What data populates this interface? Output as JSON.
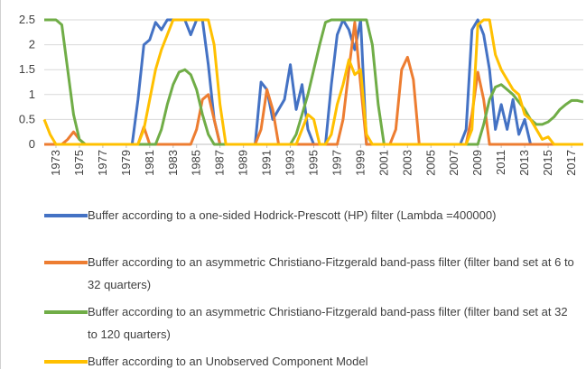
{
  "chart_data": {
    "type": "line",
    "x": [
      1972,
      1972.5,
      1973,
      1973.5,
      1974,
      1974.5,
      1975,
      1975.5,
      1976,
      1976.5,
      1977,
      1977.5,
      1978,
      1978.5,
      1979,
      1979.5,
      1980,
      1980.5,
      1981,
      1981.5,
      1982,
      1982.5,
      1983,
      1983.5,
      1984,
      1984.5,
      1985,
      1985.5,
      1986,
      1986.5,
      1987,
      1987.5,
      1988,
      1988.5,
      1989,
      1989.5,
      1990,
      1990.5,
      1991,
      1991.5,
      1992,
      1992.5,
      1993,
      1993.5,
      1994,
      1994.5,
      1995,
      1995.5,
      1996,
      1996.5,
      1997,
      1997.5,
      1998,
      1998.5,
      1999,
      1999.5,
      2000,
      2000.5,
      2001,
      2001.5,
      2002,
      2002.5,
      2003,
      2003.5,
      2004,
      2004.5,
      2005,
      2005.5,
      2006,
      2006.5,
      2007,
      2007.5,
      2008,
      2008.5,
      2009,
      2009.5,
      2010,
      2010.5,
      2011,
      2011.5,
      2012,
      2012.5,
      2013,
      2013.5,
      2014,
      2014.5,
      2015,
      2015.5,
      2016,
      2016.5,
      2017,
      2017.5,
      2018
    ],
    "xlim": [
      1972,
      2018
    ],
    "xticks": [
      1973,
      1975,
      1977,
      1979,
      1981,
      1983,
      1985,
      1987,
      1989,
      1991,
      1993,
      1995,
      1997,
      1999,
      2001,
      2003,
      2005,
      2007,
      2009,
      2011,
      2013,
      2015,
      2017
    ],
    "ylim": [
      0,
      2.5
    ],
    "yticks": [
      0,
      0.5,
      1,
      1.5,
      2,
      2.5
    ],
    "grid": true,
    "legend": "bottom",
    "series": [
      {
        "name": "Buffer according to a one-sided Hodrick-Prescott (HP) filter (Lambda =400000)",
        "color": "#4472c4",
        "values": [
          0,
          0,
          0,
          0,
          0,
          0,
          0,
          0,
          0,
          0,
          0,
          0,
          0,
          0,
          0,
          0,
          0.9,
          2.0,
          2.1,
          2.45,
          2.3,
          2.5,
          2.5,
          2.5,
          2.5,
          2.2,
          2.5,
          2.5,
          1.6,
          0.5,
          0,
          0,
          0,
          0,
          0,
          0,
          0,
          1.25,
          1.1,
          0.5,
          0.7,
          0.9,
          1.6,
          0.7,
          1.2,
          0.3,
          0,
          0,
          0,
          1.2,
          2.2,
          2.5,
          2.3,
          1.9,
          2.5,
          0,
          0,
          0,
          0,
          0,
          0,
          0,
          0,
          0,
          0,
          0,
          0,
          0,
          0,
          0,
          0,
          0,
          0.3,
          2.3,
          2.5,
          2.2,
          1.5,
          0.3,
          0.8,
          0.3,
          0.9,
          0.2,
          0.5,
          0,
          0,
          0,
          0,
          0,
          0,
          0,
          0,
          0,
          0
        ]
      },
      {
        "name": "Buffer according to an asymmetric Christiano-Fitzgerald band-pass filter (filter band set at 6 to 32 quarters)",
        "color": "#ed7d31",
        "values": [
          0,
          0,
          0,
          0,
          0.1,
          0.25,
          0.1,
          0,
          0,
          0,
          0,
          0,
          0,
          0,
          0,
          0,
          0,
          0.35,
          0,
          0,
          0,
          0,
          0,
          0,
          0,
          0,
          0.3,
          0.9,
          1.0,
          0.5,
          0,
          0,
          0,
          0,
          0,
          0,
          0,
          0.3,
          1.1,
          0.7,
          0,
          0,
          0,
          0,
          0,
          0,
          0,
          0,
          0,
          0,
          0,
          0.5,
          1.5,
          2.45,
          1.2,
          0,
          0,
          0,
          0,
          0,
          0.3,
          1.5,
          1.75,
          1.3,
          0,
          0,
          0,
          0,
          0,
          0,
          0,
          0,
          0,
          0.6,
          1.45,
          0.9,
          0,
          0,
          0,
          0,
          0,
          0,
          0,
          0,
          0,
          0,
          0,
          0,
          0,
          0,
          0,
          0,
          0
        ]
      },
      {
        "name": "Buffer according to an asymmetric Christiano-Fitzgerald band-pass filter (filter band set at 32 to 120 quarters)",
        "color": "#70ad47",
        "values": [
          2.5,
          2.5,
          2.5,
          2.4,
          1.5,
          0.6,
          0.1,
          0,
          0,
          0,
          0,
          0,
          0,
          0,
          0,
          0,
          0,
          0,
          0,
          0,
          0.3,
          0.8,
          1.2,
          1.45,
          1.5,
          1.4,
          1.1,
          0.6,
          0.2,
          0,
          0,
          0,
          0,
          0,
          0,
          0,
          0,
          0,
          0,
          0,
          0,
          0,
          0,
          0.2,
          0.6,
          1.0,
          1.5,
          2.0,
          2.45,
          2.5,
          2.5,
          2.5,
          2.5,
          2.5,
          2.5,
          2.5,
          2.0,
          0.8,
          0,
          0,
          0,
          0,
          0,
          0,
          0,
          0,
          0,
          0,
          0,
          0,
          0,
          0,
          0,
          0,
          0,
          0.4,
          0.9,
          1.15,
          1.2,
          1.1,
          1.0,
          0.85,
          0.7,
          0.5,
          0.4,
          0.4,
          0.45,
          0.55,
          0.7,
          0.8,
          0.88,
          0.88,
          0.85
        ]
      },
      {
        "name": "Buffer according to an Unobserved Component Model",
        "color": "#ffc000",
        "values": [
          0.5,
          0.2,
          0,
          0,
          0,
          0,
          0,
          0,
          0,
          0,
          0,
          0,
          0,
          0,
          0,
          0,
          0,
          0.3,
          0.9,
          1.5,
          1.9,
          2.2,
          2.5,
          2.5,
          2.5,
          2.5,
          2.5,
          2.5,
          2.5,
          2.0,
          0.8,
          0,
          0,
          0,
          0,
          0,
          0,
          0,
          0,
          0,
          0,
          0,
          0,
          0,
          0.3,
          0.6,
          0.5,
          0,
          0,
          0.2,
          0.8,
          1.2,
          1.7,
          1.4,
          1.5,
          0.2,
          0,
          0,
          0,
          0,
          0,
          0,
          0,
          0,
          0,
          0,
          0,
          0,
          0,
          0,
          0,
          0,
          0,
          0.3,
          2.4,
          2.5,
          2.5,
          1.8,
          1.5,
          1.3,
          1.1,
          1.0,
          0.6,
          0.5,
          0.3,
          0.1,
          0.15,
          0,
          0,
          0,
          0,
          0,
          0
        ]
      }
    ]
  }
}
